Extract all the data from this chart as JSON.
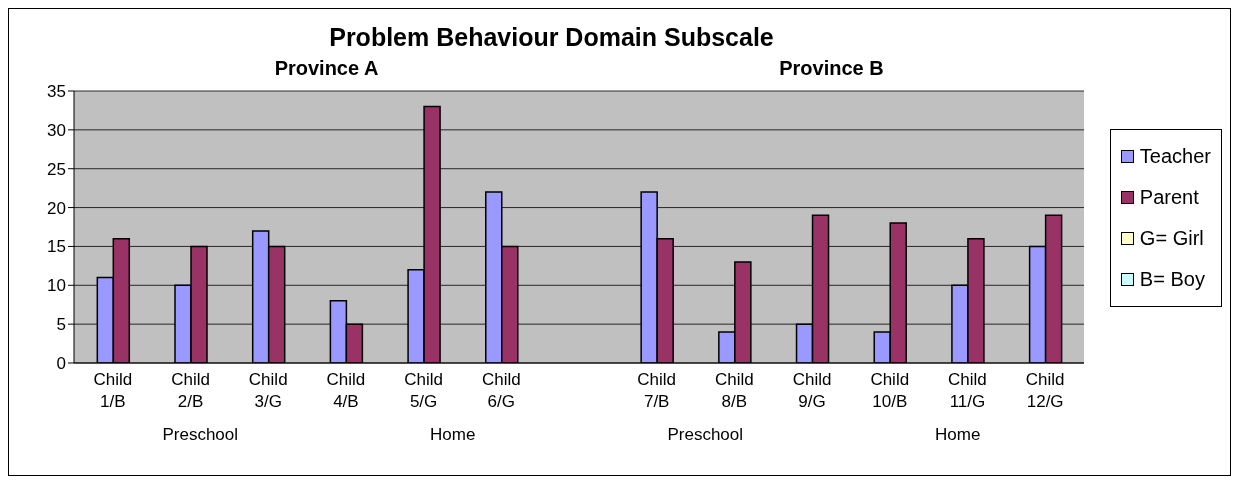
{
  "chart_data": {
    "type": "bar",
    "title": "Problem Behaviour Domain Subscale",
    "categories": [
      "Child 1/B",
      "Child 2/B",
      "Child 3/G",
      "Child 4/B",
      "Child 5/G",
      "Child 6/G",
      null,
      "Child 7/B",
      "Child 8/B",
      "Child 9/G",
      "Child 10/B",
      "Child 11/G",
      "Child 12/G"
    ],
    "series": [
      {
        "name": "Teacher",
        "color": "#9999ff",
        "values": [
          11,
          10,
          17,
          8,
          12,
          22,
          null,
          22,
          4,
          5,
          4,
          10,
          15
        ]
      },
      {
        "name": "Parent",
        "color": "#993366",
        "values": [
          16,
          15,
          15,
          5,
          33,
          15,
          null,
          16,
          13,
          19,
          18,
          16,
          19
        ]
      },
      {
        "name": "G= Girl",
        "color": "#ffffcc",
        "values": [
          null,
          null,
          null,
          null,
          null,
          null,
          null,
          null,
          null,
          null,
          null,
          null,
          null
        ]
      },
      {
        "name": "B= Boy",
        "color": "#ccffff",
        "values": [
          null,
          null,
          null,
          null,
          null,
          null,
          null,
          null,
          null,
          null,
          null,
          null,
          null
        ]
      }
    ],
    "annotations": [
      "Province A",
      "Province B",
      "Preschool",
      "Home",
      "Preschool",
      "Home"
    ],
    "ylim": [
      0,
      35
    ],
    "yticks": [
      0,
      5,
      10,
      15,
      20,
      25,
      30,
      35
    ],
    "grid": "y",
    "legend": "right"
  }
}
